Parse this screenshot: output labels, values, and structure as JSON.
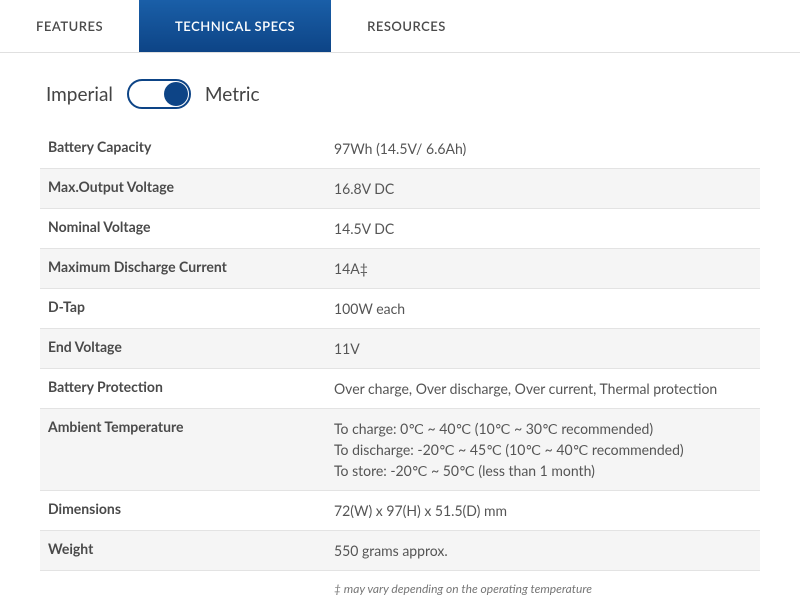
{
  "tabs": [
    {
      "label": "FEATURES",
      "active": false
    },
    {
      "label": "TECHNICAL SPECS",
      "active": true
    },
    {
      "label": "RESOURCES",
      "active": false
    }
  ],
  "toggle": {
    "left_label": "Imperial",
    "right_label": "Metric",
    "state": "metric"
  },
  "colors": {
    "tab_gradient_top": "#1a5fa8",
    "tab_gradient_bottom": "#0d4486",
    "toggle_border": "#0d4486",
    "toggle_knob": "#0d4486",
    "row_alt_bg": "#f5f5f5",
    "border": "#e3e3e3",
    "text_label": "#4a4a4a",
    "text_value": "#555555",
    "text_footnote": "#777777"
  },
  "specs": [
    {
      "label": "Battery Capacity",
      "value": "97Wh (14.5V/ 6.6Ah)"
    },
    {
      "label": "Max.Output Voltage",
      "value": "16.8V DC"
    },
    {
      "label": "Nominal Voltage",
      "value": "14.5V DC"
    },
    {
      "label": "Maximum Discharge Current",
      "value": "14A‡"
    },
    {
      "label": "D-Tap",
      "value": "100W each"
    },
    {
      "label": "End Voltage",
      "value": "11V"
    },
    {
      "label": "Battery Protection",
      "value": "Over charge, Over discharge, Over current, Thermal protection"
    },
    {
      "label": "Ambient Temperature",
      "value": "To charge: 0℃ ~ 40℃ (10℃ ~ 30℃ recommended)\nTo discharge: -20℃ ~ 45℃ (10℃ ~ 40℃ recommended)\nTo store: -20℃ ~ 50℃ (less than 1 month)"
    },
    {
      "label": "Dimensions",
      "value": "72(W) x 97(H) x 51.5(D) mm"
    },
    {
      "label": "Weight",
      "value": " 550 grams approx."
    }
  ],
  "footnote": "‡ may vary depending on the operating temperature"
}
